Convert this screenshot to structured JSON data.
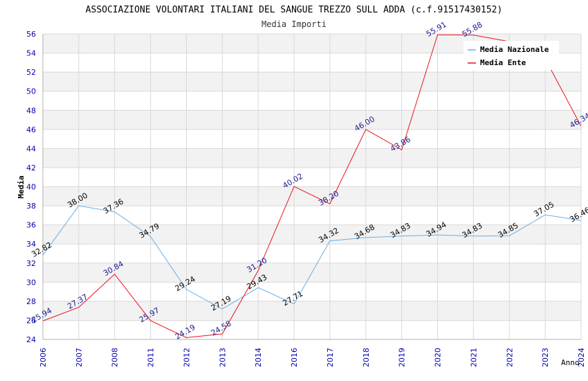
{
  "chart_data": {
    "type": "line",
    "title": "ASSOCIAZIONE VOLONTARI ITALIANI DEL SANGUE TREZZO SULL ADDA (c.f.91517430152)",
    "subtitle": "Media Importi",
    "xlabel": "Anno",
    "ylabel": "Media",
    "ylim": [
      24,
      56
    ],
    "yticks": [
      "24",
      "26",
      "28",
      "30",
      "32",
      "34",
      "36",
      "38",
      "40",
      "42",
      "44",
      "46",
      "48",
      "50",
      "52",
      "54",
      "56"
    ],
    "categories": [
      "2006",
      "2007",
      "2008",
      "2011",
      "2012",
      "2013",
      "2014",
      "2016",
      "2017",
      "2018",
      "2019",
      "2020",
      "2021",
      "2022",
      "2023",
      "2024"
    ],
    "legend_position": "top-right",
    "series": [
      {
        "name": "Media Nazionale",
        "color": "#6aaee6",
        "label_color": "#000000",
        "values": [
          32.82,
          38.0,
          37.36,
          34.79,
          29.24,
          27.19,
          29.43,
          27.71,
          34.32,
          34.68,
          34.83,
          34.94,
          34.83,
          34.85,
          37.05,
          36.46
        ],
        "labels": [
          "32.82",
          "38.00",
          "37.36",
          "34.79",
          "29.24",
          "27.19",
          "29.43",
          "27.71",
          "34.32",
          "34.68",
          "34.83",
          "34.94",
          "34.83",
          "34.85",
          "37.05",
          "36.46"
        ]
      },
      {
        "name": "Media Ente",
        "color": "#e8141c",
        "label_color": "#1a1a8c",
        "values": [
          25.94,
          27.37,
          30.84,
          25.97,
          24.19,
          24.58,
          31.2,
          40.02,
          38.2,
          46.0,
          43.86,
          55.91,
          55.88,
          55.2,
          53.4,
          46.34
        ],
        "labels": [
          "25.94",
          "27.37",
          "30.84",
          "25.97",
          "24.19",
          "24.58",
          "31.20",
          "40.02",
          "38.20",
          "46.00",
          "43.86",
          "55.91",
          "55.88",
          "",
          "",
          "46.34"
        ]
      }
    ]
  },
  "colors": {
    "band": "#f2f2f2",
    "grid": "#d8d8d8",
    "tick_text": "#0000aa",
    "axis": "#b0b0b0"
  }
}
